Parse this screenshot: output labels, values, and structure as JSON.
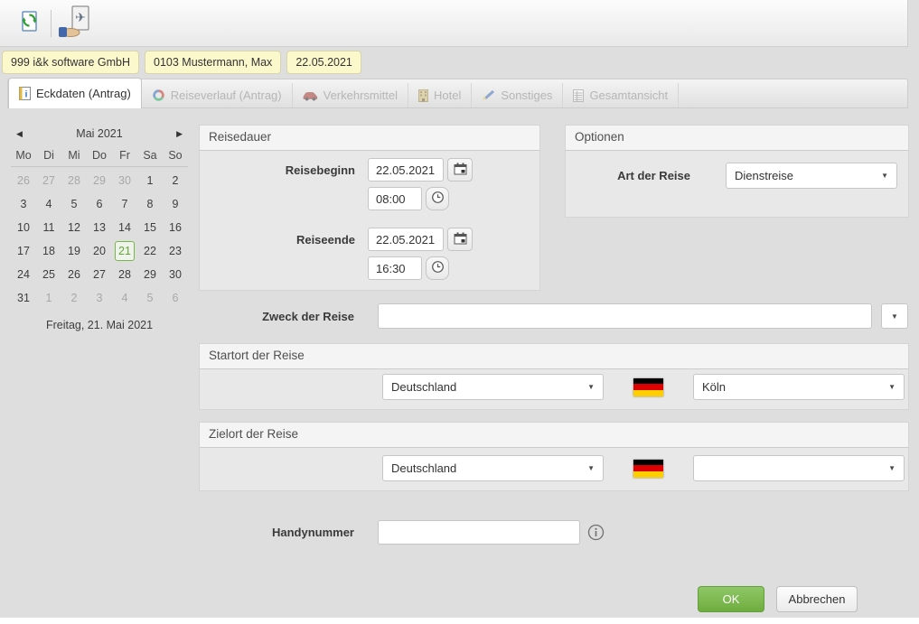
{
  "toolbar": {
    "icons": [
      {
        "name": "refresh-document"
      },
      {
        "name": "travel-request"
      }
    ]
  },
  "badges": [
    "999  i&k software GmbH",
    "0103  Mustermann, Max",
    "22.05.2021"
  ],
  "tabs": [
    {
      "label": "Eckdaten (Antrag)",
      "icon": "info-page",
      "active": true
    },
    {
      "label": "Reiseverlauf (Antrag)",
      "icon": "route-ring",
      "active": false
    },
    {
      "label": "Verkehrsmittel",
      "icon": "car",
      "active": false
    },
    {
      "label": "Hotel",
      "icon": "hotel",
      "active": false
    },
    {
      "label": "Sonstiges",
      "icon": "pen",
      "active": false
    },
    {
      "label": "Gesamtansicht",
      "icon": "grid-doc",
      "active": false
    }
  ],
  "glyphs": {
    "dropdown_arrow": "▼",
    "cal_prev": "◀",
    "cal_next": "▶"
  },
  "calendar": {
    "month_label": "Mai 2021",
    "weekdays": [
      "Mo",
      "Di",
      "Mi",
      "Do",
      "Fr",
      "Sa",
      "So"
    ],
    "weeks": [
      [
        {
          "d": "26",
          "muted": true
        },
        {
          "d": "27",
          "muted": true
        },
        {
          "d": "28",
          "muted": true
        },
        {
          "d": "29",
          "muted": true
        },
        {
          "d": "30",
          "muted": true
        },
        {
          "d": "1"
        },
        {
          "d": "2"
        }
      ],
      [
        {
          "d": "3"
        },
        {
          "d": "4"
        },
        {
          "d": "5"
        },
        {
          "d": "6"
        },
        {
          "d": "7"
        },
        {
          "d": "8"
        },
        {
          "d": "9"
        }
      ],
      [
        {
          "d": "10"
        },
        {
          "d": "11"
        },
        {
          "d": "12"
        },
        {
          "d": "13"
        },
        {
          "d": "14"
        },
        {
          "d": "15"
        },
        {
          "d": "16"
        }
      ],
      [
        {
          "d": "17"
        },
        {
          "d": "18"
        },
        {
          "d": "19"
        },
        {
          "d": "20"
        },
        {
          "d": "21",
          "selected": true
        },
        {
          "d": "22"
        },
        {
          "d": "23"
        }
      ],
      [
        {
          "d": "24"
        },
        {
          "d": "25"
        },
        {
          "d": "26"
        },
        {
          "d": "27"
        },
        {
          "d": "28"
        },
        {
          "d": "29"
        },
        {
          "d": "30"
        }
      ],
      [
        {
          "d": "31"
        },
        {
          "d": "1",
          "muted": true
        },
        {
          "d": "2",
          "muted": true
        },
        {
          "d": "3",
          "muted": true
        },
        {
          "d": "4",
          "muted": true
        },
        {
          "d": "5",
          "muted": true
        },
        {
          "d": "6",
          "muted": true
        }
      ]
    ],
    "footer": "Freitag, 21. Mai 2021"
  },
  "reisedauer": {
    "title": "Reisedauer",
    "begin_label": "Reisebeginn",
    "begin_date": "22.05.2021",
    "begin_time": "08:00",
    "end_label": "Reiseende",
    "end_date": "22.05.2021",
    "end_time": "16:30"
  },
  "optionen": {
    "title": "Optionen",
    "trip_type_label": "Art der Reise",
    "trip_type_value": "Dienstreise"
  },
  "zweck": {
    "label": "Zweck der Reise",
    "value": ""
  },
  "startort": {
    "title": "Startort der Reise",
    "country": "Deutschland",
    "city": "Köln"
  },
  "zielort": {
    "title": "Zielort der Reise",
    "country": "Deutschland",
    "city": ""
  },
  "handy": {
    "label": "Handynummer",
    "value": ""
  },
  "actions": {
    "ok": "OK",
    "cancel": "Abbrechen"
  },
  "colors": {
    "accent_green": "#76b843",
    "badge_yellow": "#fbf8cc",
    "flag_black": "#000000",
    "flag_red": "#dd0000",
    "flag_gold": "#ffce00"
  }
}
